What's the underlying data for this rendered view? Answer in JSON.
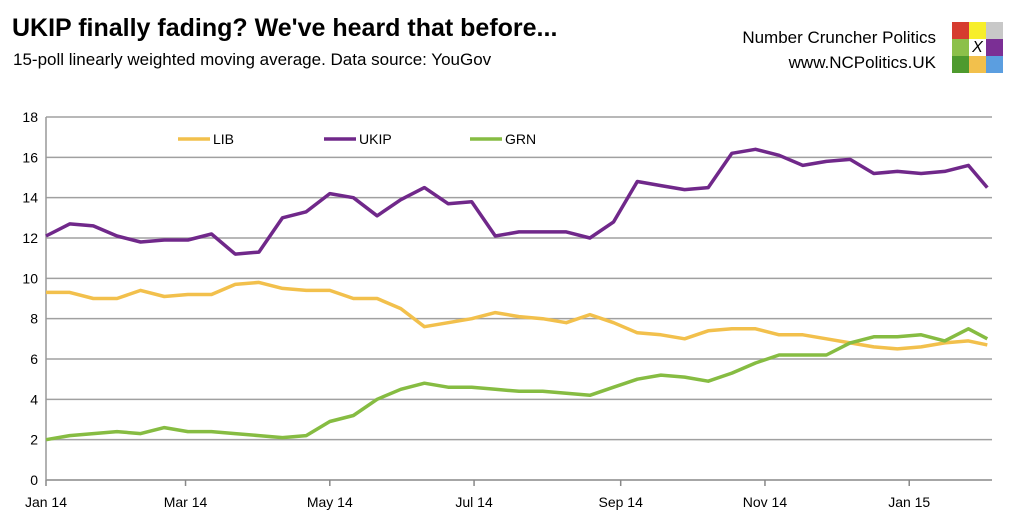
{
  "header": {
    "title": "UKIP finally fading? We've heard that before...",
    "subtitle": "15-poll linearly weighted moving average. Data source: YouGov",
    "brand_name": "Number Cruncher Politics",
    "brand_url": "www.NCPolitics.UK",
    "logo_colors": [
      "#d63c2f",
      "#f7ee2a",
      "#c8c8c8",
      "#8cc04a",
      "#ffffff",
      "#7b2f95",
      "#4e9a2e",
      "#f2c04c",
      "#5b9ee0"
    ],
    "logo_mark": "X"
  },
  "chart_data": {
    "type": "line",
    "title": "UKIP finally fading? We've heard that before...",
    "ylim": [
      0,
      18
    ],
    "yticks": [
      0,
      2,
      4,
      6,
      8,
      10,
      12,
      14,
      16,
      18
    ],
    "xlim": [
      "2014-01-01",
      "2015-02-05"
    ],
    "xticks": [
      {
        "date": "2014-01-01",
        "label": "Jan 14"
      },
      {
        "date": "2014-03-01",
        "label": "Mar 14"
      },
      {
        "date": "2014-05-01",
        "label": "May 14"
      },
      {
        "date": "2014-07-01",
        "label": "Jul 14"
      },
      {
        "date": "2014-09-01",
        "label": "Sep 14"
      },
      {
        "date": "2014-11-01",
        "label": "Nov 14"
      },
      {
        "date": "2015-01-01",
        "label": "Jan 15"
      }
    ],
    "grid": "horizontal",
    "legend": "top",
    "x": [
      "2014-01-01",
      "2014-01-11",
      "2014-01-21",
      "2014-01-31",
      "2014-02-10",
      "2014-02-20",
      "2014-03-02",
      "2014-03-12",
      "2014-03-22",
      "2014-04-01",
      "2014-04-11",
      "2014-04-21",
      "2014-05-01",
      "2014-05-11",
      "2014-05-21",
      "2014-05-31",
      "2014-06-10",
      "2014-06-20",
      "2014-06-30",
      "2014-07-10",
      "2014-07-20",
      "2014-07-30",
      "2014-08-09",
      "2014-08-19",
      "2014-08-29",
      "2014-09-08",
      "2014-09-18",
      "2014-09-28",
      "2014-10-08",
      "2014-10-18",
      "2014-10-28",
      "2014-11-07",
      "2014-11-17",
      "2014-11-27",
      "2014-12-07",
      "2014-12-17",
      "2014-12-27",
      "2015-01-06",
      "2015-01-16",
      "2015-01-26",
      "2015-02-03"
    ],
    "series": [
      {
        "name": "LIB",
        "color": "#f2c04c",
        "values": [
          9.3,
          9.3,
          9.0,
          9.0,
          9.4,
          9.1,
          9.2,
          9.2,
          9.7,
          9.8,
          9.5,
          9.4,
          9.4,
          9.0,
          9.0,
          8.5,
          7.6,
          7.8,
          8.0,
          8.3,
          8.1,
          8.0,
          7.8,
          8.2,
          7.8,
          7.3,
          7.2,
          7.0,
          7.4,
          7.5,
          7.5,
          7.2,
          7.2,
          7.0,
          6.8,
          6.6,
          6.5,
          6.6,
          6.8,
          6.9,
          6.7
        ]
      },
      {
        "name": "UKIP",
        "color": "#70288a",
        "values": [
          12.1,
          12.7,
          12.6,
          12.1,
          11.8,
          11.9,
          11.9,
          12.2,
          11.2,
          11.3,
          13.0,
          13.3,
          14.2,
          14.0,
          13.1,
          13.9,
          14.5,
          13.7,
          13.8,
          12.1,
          12.3,
          12.3,
          12.3,
          12.0,
          12.8,
          14.8,
          14.6,
          14.4,
          14.5,
          16.2,
          16.4,
          16.1,
          15.6,
          15.8,
          15.9,
          15.2,
          15.3,
          15.2,
          15.3,
          15.6,
          14.5
        ]
      },
      {
        "name": "GRN",
        "color": "#86bc42",
        "values": [
          2.0,
          2.2,
          2.3,
          2.4,
          2.3,
          2.6,
          2.4,
          2.4,
          2.3,
          2.2,
          2.1,
          2.2,
          2.9,
          3.2,
          4.0,
          4.5,
          4.8,
          4.6,
          4.6,
          4.5,
          4.4,
          4.4,
          4.3,
          4.2,
          4.6,
          5.0,
          5.2,
          5.1,
          4.9,
          5.3,
          5.8,
          6.2,
          6.2,
          6.2,
          6.8,
          7.1,
          7.1,
          7.2,
          6.9,
          7.5,
          7.0
        ]
      }
    ]
  }
}
